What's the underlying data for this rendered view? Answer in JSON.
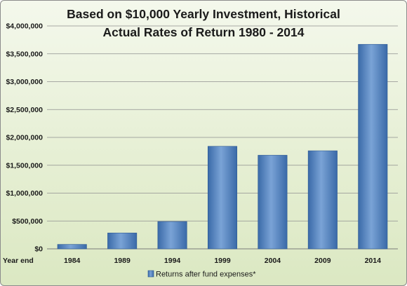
{
  "chart_data": {
    "type": "bar",
    "title_lines": [
      "Based on $10,000 Yearly Investment, Historical",
      "Actual Rates of Return 1980 - 2014"
    ],
    "x_axis_label": "Year end",
    "categories": [
      "1984",
      "1989",
      "1994",
      "1999",
      "2004",
      "2009",
      "2014"
    ],
    "series": [
      {
        "name": "Returns after fund expenses*",
        "values": [
          80000,
          285000,
          490000,
          1840000,
          1680000,
          1760000,
          3670000
        ]
      }
    ],
    "ylim": [
      0,
      4000000
    ],
    "y_ticks": [
      0,
      500000,
      1000000,
      1500000,
      2000000,
      2500000,
      3000000,
      3500000,
      4000000
    ],
    "y_tick_labels": [
      "$0",
      "$500,000",
      "$1,000,000",
      "$1,500,000",
      "$2,000,000",
      "$2,500,000",
      "$3,000,000",
      "$3,500,000",
      "$4,000,000"
    ],
    "grid": true,
    "legend_position": "bottom",
    "colors": {
      "bar": "#4f81bd",
      "bar_dark": "#3a6aa8",
      "bar_light": "#7aa3d6",
      "background": "#e6efd4",
      "gridline": "#8f8f8f"
    }
  }
}
